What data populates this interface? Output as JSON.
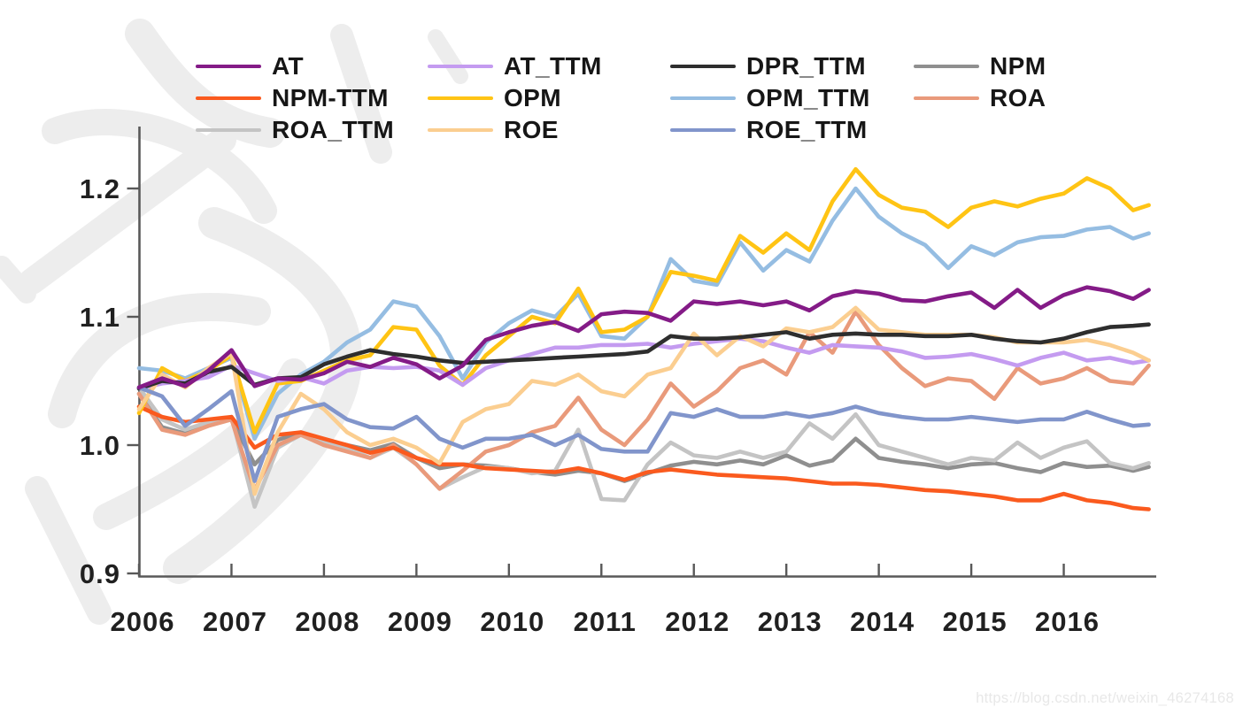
{
  "watermark": {
    "url_text": "https://blog.csdn.net/weixin_46274168",
    "background_graphic": "csdn-logo-watermark",
    "background_color": "#ededed"
  },
  "chart_data": {
    "type": "line",
    "title": "",
    "xlabel": "",
    "ylabel": "",
    "xlim": [
      2006,
      2017
    ],
    "ylim": [
      0.9,
      1.25
    ],
    "grid": false,
    "legend_position": "top",
    "legend_columns": 4,
    "axis_color": "#595959",
    "tick_label_color": "#202020",
    "x_ticks": {
      "values": [
        2006,
        2007,
        2008,
        2009,
        2010,
        2011,
        2012,
        2013,
        2014,
        2015,
        2016
      ],
      "labels": [
        "2006",
        "2007",
        "2008",
        "2009",
        "2010",
        "2011",
        "2012",
        "2013",
        "2014",
        "2015",
        "2016"
      ]
    },
    "y_ticks": {
      "values": [
        0.9,
        1.0,
        1.1,
        1.2
      ],
      "labels": [
        "0.9",
        "1.0",
        "1.1",
        "1.2"
      ]
    },
    "x": [
      2006.0,
      2006.25,
      2006.5,
      2006.75,
      2007.0,
      2007.25,
      2007.5,
      2007.75,
      2008.0,
      2008.25,
      2008.5,
      2008.75,
      2009.0,
      2009.25,
      2009.5,
      2009.75,
      2010.0,
      2010.25,
      2010.5,
      2010.75,
      2011.0,
      2011.25,
      2011.5,
      2011.75,
      2012.0,
      2012.25,
      2012.5,
      2012.75,
      2013.0,
      2013.25,
      2013.5,
      2013.75,
      2014.0,
      2014.25,
      2014.5,
      2014.75,
      2015.0,
      2015.25,
      2015.5,
      2015.75,
      2016.0,
      2016.25,
      2016.5,
      2016.75,
      2016.92
    ],
    "series": [
      {
        "name": "AT",
        "color": "#841b87",
        "values": [
          1.045,
          1.052,
          1.046,
          1.058,
          1.074,
          1.046,
          1.052,
          1.051,
          1.056,
          1.065,
          1.061,
          1.068,
          1.063,
          1.052,
          1.062,
          1.082,
          1.088,
          1.093,
          1.096,
          1.089,
          1.102,
          1.104,
          1.103,
          1.097,
          1.112,
          1.11,
          1.112,
          1.109,
          1.112,
          1.105,
          1.116,
          1.12,
          1.118,
          1.113,
          1.112,
          1.116,
          1.119,
          1.107,
          1.121,
          1.107,
          1.117,
          1.123,
          1.12,
          1.114,
          1.121
        ]
      },
      {
        "name": "AT_TTM",
        "color": "#c49bf0",
        "values": [
          1.044,
          1.048,
          1.05,
          1.053,
          1.062,
          1.056,
          1.05,
          1.053,
          1.048,
          1.058,
          1.061,
          1.06,
          1.061,
          1.058,
          1.047,
          1.06,
          1.066,
          1.071,
          1.076,
          1.076,
          1.078,
          1.078,
          1.079,
          1.076,
          1.079,
          1.081,
          1.083,
          1.081,
          1.076,
          1.072,
          1.078,
          1.077,
          1.076,
          1.073,
          1.068,
          1.069,
          1.071,
          1.067,
          1.062,
          1.068,
          1.072,
          1.066,
          1.068,
          1.064,
          1.066
        ]
      },
      {
        "name": "DPR_TTM",
        "color": "#2e2e2e",
        "values": [
          1.044,
          1.05,
          1.048,
          1.057,
          1.061,
          1.047,
          1.052,
          1.053,
          1.063,
          1.069,
          1.074,
          1.071,
          1.069,
          1.066,
          1.064,
          1.065,
          1.066,
          1.067,
          1.068,
          1.069,
          1.07,
          1.071,
          1.073,
          1.085,
          1.083,
          1.083,
          1.084,
          1.086,
          1.088,
          1.083,
          1.086,
          1.087,
          1.086,
          1.086,
          1.085,
          1.085,
          1.086,
          1.083,
          1.081,
          1.08,
          1.083,
          1.088,
          1.092,
          1.093,
          1.094
        ]
      },
      {
        "name": "NPM",
        "color": "#8f8f8f",
        "values": [
          1.04,
          1.014,
          1.009,
          1.016,
          1.02,
          0.985,
          1.004,
          1.01,
          1.004,
          1.0,
          0.996,
          1.001,
          0.99,
          0.982,
          0.985,
          0.984,
          0.982,
          0.979,
          0.977,
          0.98,
          0.978,
          0.972,
          0.978,
          0.984,
          0.987,
          0.985,
          0.988,
          0.985,
          0.992,
          0.984,
          0.988,
          1.005,
          0.99,
          0.987,
          0.985,
          0.982,
          0.985,
          0.986,
          0.982,
          0.979,
          0.986,
          0.983,
          0.984,
          0.98,
          0.983
        ]
      },
      {
        "name": "NPM-TTM",
        "color": "#fa5a1e",
        "values": [
          1.03,
          1.022,
          1.018,
          1.02,
          1.022,
          0.998,
          1.008,
          1.01,
          1.005,
          1.0,
          0.994,
          0.998,
          0.99,
          0.985,
          0.985,
          0.982,
          0.981,
          0.98,
          0.979,
          0.982,
          0.978,
          0.973,
          0.979,
          0.981,
          0.979,
          0.977,
          0.976,
          0.975,
          0.974,
          0.972,
          0.97,
          0.97,
          0.969,
          0.967,
          0.965,
          0.964,
          0.962,
          0.96,
          0.957,
          0.957,
          0.962,
          0.957,
          0.955,
          0.951,
          0.95
        ]
      },
      {
        "name": "OPM",
        "color": "#ffc414",
        "values": [
          1.025,
          1.06,
          1.05,
          1.058,
          1.07,
          1.01,
          1.048,
          1.05,
          1.058,
          1.066,
          1.07,
          1.092,
          1.09,
          1.062,
          1.047,
          1.07,
          1.085,
          1.1,
          1.095,
          1.122,
          1.088,
          1.09,
          1.1,
          1.135,
          1.132,
          1.128,
          1.163,
          1.15,
          1.165,
          1.152,
          1.19,
          1.215,
          1.195,
          1.185,
          1.182,
          1.17,
          1.185,
          1.19,
          1.186,
          1.192,
          1.196,
          1.208,
          1.2,
          1.183,
          1.187
        ]
      },
      {
        "name": "OPM_TTM",
        "color": "#95bde2",
        "values": [
          1.06,
          1.058,
          1.052,
          1.06,
          1.068,
          1.005,
          1.04,
          1.055,
          1.065,
          1.08,
          1.09,
          1.112,
          1.108,
          1.085,
          1.052,
          1.08,
          1.095,
          1.105,
          1.1,
          1.118,
          1.085,
          1.083,
          1.1,
          1.145,
          1.128,
          1.125,
          1.158,
          1.136,
          1.152,
          1.143,
          1.175,
          1.2,
          1.178,
          1.165,
          1.156,
          1.138,
          1.155,
          1.148,
          1.158,
          1.162,
          1.163,
          1.168,
          1.17,
          1.161,
          1.165
        ]
      },
      {
        "name": "ROA",
        "color": "#e99a7b",
        "values": [
          1.04,
          1.012,
          1.008,
          1.015,
          1.02,
          0.965,
          1.0,
          1.008,
          1.0,
          0.995,
          0.99,
          1.0,
          0.985,
          0.966,
          0.98,
          0.995,
          1.0,
          1.01,
          1.015,
          1.037,
          1.012,
          1.0,
          1.02,
          1.048,
          1.03,
          1.042,
          1.06,
          1.066,
          1.055,
          1.088,
          1.072,
          1.104,
          1.078,
          1.06,
          1.046,
          1.052,
          1.05,
          1.036,
          1.06,
          1.048,
          1.052,
          1.06,
          1.05,
          1.048,
          1.062
        ]
      },
      {
        "name": "ROA_TTM",
        "color": "#c4c4c4",
        "values": [
          1.045,
          1.02,
          1.012,
          1.018,
          1.022,
          0.952,
          0.998,
          1.008,
          1.002,
          0.998,
          0.99,
          0.998,
          0.985,
          0.966,
          0.975,
          0.983,
          0.982,
          0.978,
          0.98,
          1.012,
          0.958,
          0.957,
          0.985,
          1.002,
          0.992,
          0.99,
          0.995,
          0.99,
          0.995,
          1.017,
          1.005,
          1.024,
          1.0,
          0.995,
          0.99,
          0.985,
          0.99,
          0.988,
          1.002,
          0.99,
          0.998,
          1.003,
          0.986,
          0.982,
          0.986
        ]
      },
      {
        "name": "ROE",
        "color": "#fbce90",
        "values": [
          1.028,
          1.055,
          1.045,
          1.06,
          1.072,
          0.962,
          1.01,
          1.04,
          1.028,
          1.01,
          1.0,
          1.005,
          0.998,
          0.986,
          1.018,
          1.028,
          1.032,
          1.05,
          1.047,
          1.055,
          1.042,
          1.038,
          1.055,
          1.06,
          1.087,
          1.07,
          1.085,
          1.077,
          1.091,
          1.088,
          1.092,
          1.107,
          1.09,
          1.088,
          1.086,
          1.086,
          1.086,
          1.084,
          1.08,
          1.08,
          1.08,
          1.082,
          1.078,
          1.072,
          1.066
        ]
      },
      {
        "name": "ROE_TTM",
        "color": "#8195cb",
        "values": [
          1.045,
          1.038,
          1.015,
          1.028,
          1.042,
          0.972,
          1.022,
          1.028,
          1.032,
          1.02,
          1.014,
          1.013,
          1.022,
          1.005,
          0.998,
          1.005,
          1.005,
          1.008,
          1.0,
          1.008,
          0.997,
          0.995,
          0.995,
          1.025,
          1.022,
          1.028,
          1.022,
          1.022,
          1.025,
          1.022,
          1.025,
          1.03,
          1.025,
          1.022,
          1.02,
          1.02,
          1.022,
          1.02,
          1.018,
          1.02,
          1.02,
          1.026,
          1.02,
          1.015,
          1.016
        ]
      }
    ],
    "draw_order": [
      "NPM",
      "ROA_TTM",
      "ROA",
      "NPM-TTM",
      "OPM_TTM",
      "OPM",
      "AT_TTM",
      "ROE",
      "DPR_TTM",
      "ROE_TTM",
      "AT"
    ]
  }
}
